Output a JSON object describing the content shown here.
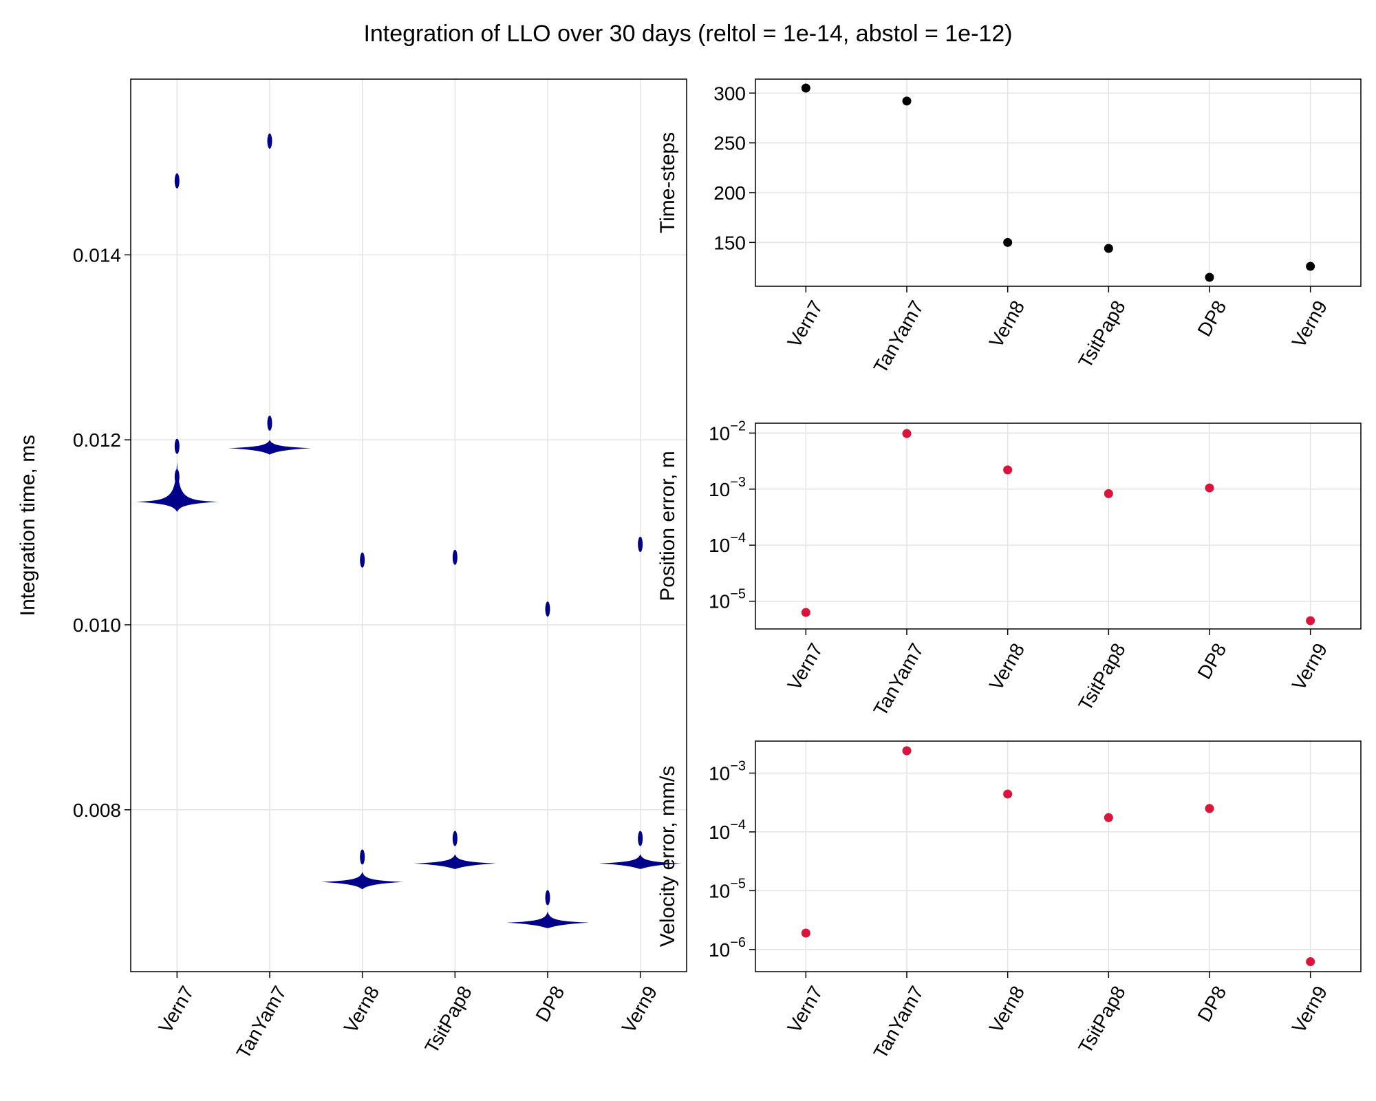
{
  "chart_data": {
    "title": "Integration of LLO over 30 days (reltol = 1e-14, abstol = 1e-12)",
    "categories": [
      "Vern7",
      "TanYam7",
      "Vern8",
      "TsitPap8",
      "DP8",
      "Vern9"
    ],
    "panels": [
      {
        "id": "integration-time",
        "type": "violin",
        "ylabel": "Integration time, ms",
        "yscale": "linear",
        "ylim": [
          0.00625,
          0.0159
        ],
        "yticks": [
          0.008,
          0.01,
          0.012,
          0.014
        ],
        "ytick_labels": [
          "0.008",
          "0.010",
          "0.012",
          "0.014"
        ],
        "color": "#00008b",
        "grid": true,
        "series": [
          {
            "category": "Vern7",
            "bulk_center": 0.01133,
            "bulk_range": [
              0.01122,
              0.01176
            ],
            "outliers": [
              0.0116,
              0.0148,
              0.01193
            ]
          },
          {
            "category": "TanYam7",
            "bulk_center": 0.01191,
            "bulk_range": [
              0.01184,
              0.012
            ],
            "outliers": [
              0.01218,
              0.01523
            ]
          },
          {
            "category": "Vern8",
            "bulk_center": 0.00722,
            "bulk_range": [
              0.00714,
              0.00733
            ],
            "outliers": [
              0.00749,
              0.0107
            ]
          },
          {
            "category": "TsitPap8",
            "bulk_center": 0.00742,
            "bulk_range": [
              0.00736,
              0.00752
            ],
            "outliers": [
              0.00769,
              0.01073
            ]
          },
          {
            "category": "DP8",
            "bulk_center": 0.00678,
            "bulk_range": [
              0.00672,
              0.0069
            ],
            "outliers": [
              0.00705,
              0.01017
            ]
          },
          {
            "category": "Vern9",
            "bulk_center": 0.00742,
            "bulk_range": [
              0.00736,
              0.00752
            ],
            "outliers": [
              0.00769,
              0.01087
            ]
          }
        ]
      },
      {
        "id": "time-steps",
        "type": "scatter",
        "ylabel": "Time-steps",
        "yscale": "linear",
        "ylim": [
          106,
          314
        ],
        "yticks": [
          150,
          200,
          250,
          300
        ],
        "ytick_labels": [
          "150",
          "200",
          "250",
          "300"
        ],
        "color": "#000000",
        "grid": true,
        "values": [
          305,
          292,
          150,
          144,
          115,
          126
        ]
      },
      {
        "id": "position-error",
        "type": "scatter",
        "ylabel": "Position error, m",
        "yscale": "log",
        "ylim": [
          3.2e-06,
          0.015
        ],
        "yticks": [
          1e-05,
          0.0001,
          0.001,
          0.01
        ],
        "ytick_labels": [
          [
            "10",
            "−5"
          ],
          [
            "10",
            "−4"
          ],
          [
            "10",
            "−3"
          ],
          [
            "10",
            "−2"
          ]
        ],
        "color": "#dc143c",
        "grid": true,
        "values": [
          6.3e-06,
          0.0098,
          0.0022,
          0.00083,
          0.00105,
          4.5e-06
        ]
      },
      {
        "id": "velocity-error",
        "type": "scatter",
        "ylabel": "Velocity error, mm/s",
        "yscale": "log",
        "ylim": [
          4.2e-07,
          0.0035
        ],
        "yticks": [
          1e-06,
          1e-05,
          0.0001,
          0.001
        ],
        "ytick_labels": [
          [
            "10",
            "−6"
          ],
          [
            "10",
            "−5"
          ],
          [
            "10",
            "−4"
          ],
          [
            "10",
            "−3"
          ]
        ],
        "color": "#dc143c",
        "grid": true,
        "values": [
          1.9e-06,
          0.0024,
          0.00044,
          0.000175,
          0.00025,
          6.2e-07
        ]
      }
    ]
  }
}
